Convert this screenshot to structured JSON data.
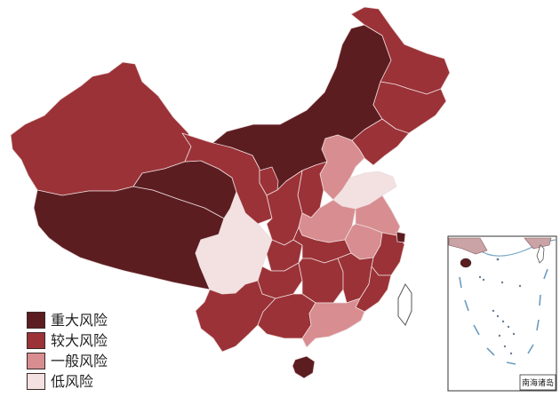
{
  "legend": [
    {
      "label": "重大风险",
      "color": "#5c1d21"
    },
    {
      "label": "较大风险",
      "color": "#9b3237"
    },
    {
      "label": "一般风险",
      "color": "#d88d90"
    },
    {
      "label": "低风险",
      "color": "#f3e1e1"
    }
  ],
  "regions": {
    "xinjiang": 1,
    "tibet": 0,
    "qinghai": 0,
    "inner-mongolia": 0,
    "gansu": 1,
    "ningxia": 1,
    "heilongjiang": 1,
    "jilin": 1,
    "liaoning": 1,
    "hebei": 2,
    "shanxi": 1,
    "shandong": 3,
    "shaanxi": 1,
    "henan": 2,
    "jiangsu": 2,
    "anhui": 2,
    "shanghai": 0,
    "zhejiang": 1,
    "sichuan": 3,
    "chongqing": 1,
    "hubei": 1,
    "guizhou": 1,
    "hunan": 1,
    "jiangxi": 1,
    "fujian": 1,
    "yunnan": 1,
    "guangxi": 1,
    "guangdong": 2,
    "hainan": 0
  },
  "inset": {
    "label": "南海诸岛"
  }
}
